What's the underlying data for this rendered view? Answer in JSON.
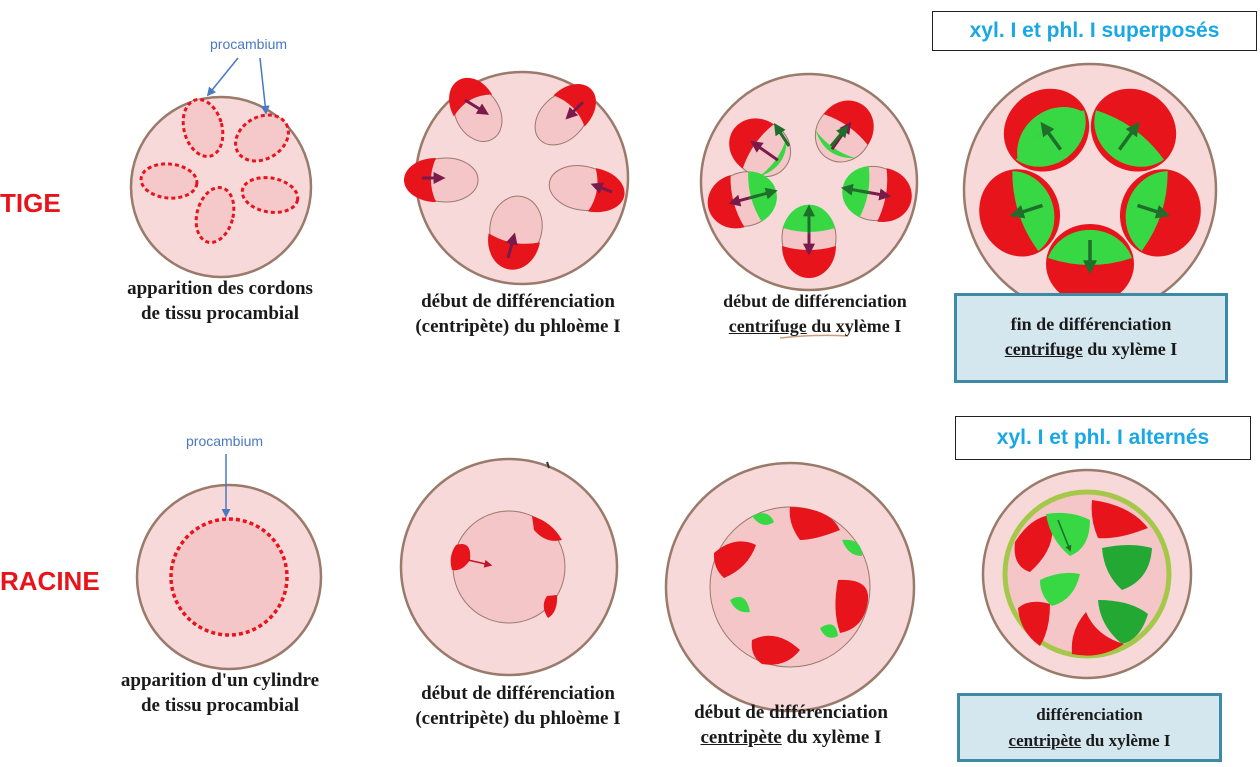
{
  "rows": {
    "tige": "TIGE",
    "racine": "RACINE"
  },
  "labels": {
    "procambium_top": "procambium",
    "procambium_bottom": "procambium"
  },
  "boxes": {
    "superposes": "xyl. I et phl. I superposés",
    "alternes": "xyl. I et phl. I alternés"
  },
  "captions": {
    "t1_l1": "apparition des cordons",
    "t1_l2": "de tissu procambial",
    "t2_l1": "début de différenciation",
    "t2_l2": "(centripète) du phloème I",
    "t3_l1": "début de différenciation",
    "t3_l2a": "centrifuge",
    "t3_l2b": " du xylème I",
    "t4_l1": "fin de différenciation",
    "t4_l2a": "centrifuge",
    "t4_l2b": " du xylème I",
    "r1_l1": "apparition d'un cylindre",
    "r1_l2": "de tissu procambial",
    "r2_l1": "début de différenciation",
    "r2_l2": "(centripète) du phloème I",
    "r3_l1": "début de différenciation",
    "r3_l2a": "centripète",
    "r3_l2b": " du xylème I",
    "r4_l1": "différenciation",
    "r4_l2a": "centripète",
    "r4_l2b": " du xylème I"
  },
  "colors": {
    "tissue": "#f7d9da",
    "outline": "#9a7a6a",
    "phloem": "#e8141b",
    "xylem": "#38d845",
    "xylem_dark": "#22a833",
    "procambium": "#e8141b",
    "phloem_arrow": "#7a1a4a",
    "xylem_arrow": "#1f6e2a",
    "arrow_blue": "#4a79c0",
    "endo_ring": "#a5c84a"
  }
}
